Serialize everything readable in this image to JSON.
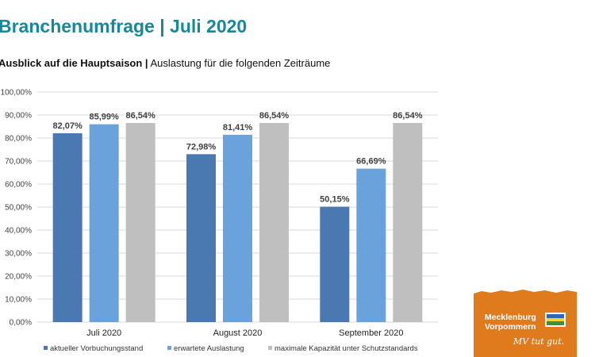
{
  "header": {
    "title": "Branchenumfrage | Juli 2020",
    "subtitle_bold": "Ausblick auf die Hauptsaison |",
    "subtitle_rest": " Auslastung für die folgenden Zeiträume"
  },
  "chart_data": {
    "type": "bar",
    "categories": [
      "Juli 2020",
      "August 2020",
      "September 2020"
    ],
    "series": [
      {
        "name": "aktueller Vorbuchungsstand",
        "values": [
          82.07,
          72.98,
          50.15
        ],
        "labels": [
          "82,07%",
          "72,98%",
          "50,15%"
        ],
        "color": "#4a78b0"
      },
      {
        "name": "erwartete Auslastung",
        "values": [
          85.99,
          81.41,
          66.69
        ],
        "labels": [
          "85,99%",
          "81,41%",
          "66,69%"
        ],
        "color": "#6aa3dc"
      },
      {
        "name": "maximale Kapazität unter Schutzstandards",
        "values": [
          86.54,
          86.54,
          86.54
        ],
        "labels": [
          "86,54%",
          "86,54%",
          "86,54%"
        ],
        "color": "#bfbfbf"
      }
    ],
    "yticks": [
      {
        "value": 0,
        "label": "0,00%"
      },
      {
        "value": 10,
        "label": "10,00%"
      },
      {
        "value": 20,
        "label": "20,00%"
      },
      {
        "value": 30,
        "label": "30,00%"
      },
      {
        "value": 40,
        "label": "40,00%"
      },
      {
        "value": 50,
        "label": "50,00%"
      },
      {
        "value": 60,
        "label": "60,00%"
      },
      {
        "value": 70,
        "label": "70,00%"
      },
      {
        "value": 80,
        "label": "80,00%"
      },
      {
        "value": 90,
        "label": "90,00%"
      },
      {
        "value": 100,
        "label": "100,00%"
      }
    ],
    "ylim": [
      0,
      100
    ],
    "grid": true,
    "legend_position": "bottom"
  },
  "logo": {
    "line1": "Mecklenburg",
    "line2": "Vorpommern",
    "slogan": "MV tut gut.",
    "color": "#e07b1d"
  }
}
